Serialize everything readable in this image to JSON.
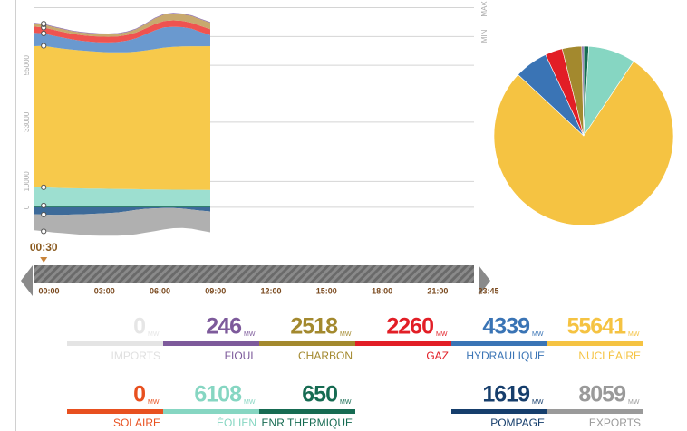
{
  "chart_data": {
    "type": "area",
    "x": [
      0,
      0.5,
      1,
      1.5,
      2,
      2.5,
      3,
      3.5,
      4,
      4.5,
      5,
      5.5,
      6,
      6.5,
      7,
      7.5,
      8,
      8.5,
      9,
      9.5
    ],
    "xlim": [
      0,
      23.75
    ],
    "xticks": [
      {
        "value": 0,
        "label": "00:00"
      },
      {
        "value": 3,
        "label": "03:00"
      },
      {
        "value": 6,
        "label": "06:00"
      },
      {
        "value": 9,
        "label": "09:00"
      },
      {
        "value": 12,
        "label": "12:00"
      },
      {
        "value": 15,
        "label": "15:00"
      },
      {
        "value": 18,
        "label": "18:00"
      },
      {
        "value": 21,
        "label": "21:00"
      },
      {
        "value": 23.75,
        "label": "23:45"
      }
    ],
    "ylim": [
      -11600,
      77500
    ],
    "yticks": [
      0,
      10000,
      33000,
      55000
    ],
    "grid": true,
    "max_line": {
      "value": 77500,
      "label": "MAX"
    },
    "min_line": {
      "value": 66300,
      "label": "MIN"
    },
    "cursor": {
      "value": 0.5,
      "label": "00:30"
    },
    "series": [
      {
        "name": "ENR THERMIQUE",
        "color": "#1c7a5a",
        "values": [
          700,
          700,
          690,
          690,
          680,
          680,
          680,
          670,
          670,
          670,
          660,
          660,
          660,
          660,
          660,
          650,
          650,
          650,
          650,
          650
        ]
      },
      {
        "name": "ÉOLIEN",
        "color": "#9ddfd0",
        "values": [
          7200,
          7050,
          6900,
          6800,
          6700,
          6650,
          6600,
          6550,
          6500,
          6450,
          6400,
          6350,
          6300,
          6250,
          6200,
          6180,
          6150,
          6130,
          6120,
          6108
        ]
      },
      {
        "name": "NUCLÉAIRE",
        "color": "#f7c94b",
        "values": [
          54500,
          54800,
          54400,
          54000,
          53700,
          53400,
          53200,
          53000,
          52900,
          52900,
          53000,
          53300,
          53800,
          54400,
          55000,
          55300,
          55500,
          55600,
          55600,
          55641
        ]
      },
      {
        "name": "HYDRAULIQUE",
        "color": "#6a99cf",
        "values": [
          5200,
          4800,
          4500,
          4300,
          4000,
          3800,
          3700,
          3700,
          3800,
          4000,
          4500,
          5200,
          6200,
          7200,
          7800,
          7800,
          7500,
          6800,
          5500,
          4339
        ]
      },
      {
        "name": "GAZ",
        "color": "#ef5350",
        "values": [
          2400,
          2300,
          2300,
          2200,
          2200,
          2200,
          2200,
          2200,
          2200,
          2200,
          2200,
          2200,
          2300,
          2400,
          2500,
          2500,
          2400,
          2300,
          2300,
          2260
        ]
      },
      {
        "name": "CHARBON",
        "color": "#c8a96e",
        "values": [
          1200,
          1200,
          1100,
          1100,
          1000,
          1000,
          1000,
          1000,
          1000,
          1000,
          1100,
          1300,
          1700,
          2200,
          2500,
          2600,
          2600,
          2600,
          2550,
          2518
        ]
      },
      {
        "name": "FIOUL",
        "color": "#8e6fae",
        "values": [
          250,
          250,
          250,
          250,
          250,
          250,
          250,
          250,
          250,
          250,
          250,
          250,
          250,
          250,
          250,
          250,
          250,
          250,
          250,
          246
        ]
      },
      {
        "name": "POMPAGE",
        "color": "#3c6a99",
        "values": [
          -2700,
          -2800,
          -2900,
          -2900,
          -2800,
          -2700,
          -2600,
          -2400,
          -2200,
          -2000,
          -1500,
          -1000,
          -600,
          -400,
          -300,
          -300,
          -500,
          -900,
          -1300,
          -1619
        ]
      },
      {
        "name": "EXPORTS",
        "color": "#b0b0b0",
        "values": [
          -6200,
          -6500,
          -6800,
          -7100,
          -7500,
          -7900,
          -8300,
          -8600,
          -8800,
          -9000,
          -9300,
          -9400,
          -9200,
          -8800,
          -8300,
          -7800,
          -7500,
          -7400,
          -7700,
          -8059
        ]
      }
    ]
  },
  "tiles_unit": "MW",
  "tiles": [
    {
      "name": "IMPORTS",
      "value": 0,
      "color": "#e4e4e4"
    },
    {
      "name": "FIOUL",
      "value": 246,
      "color": "#7d5a9b"
    },
    {
      "name": "CHARBON",
      "value": 2518,
      "color": "#a3892e"
    },
    {
      "name": "GAZ",
      "value": 2260,
      "color": "#e21e26"
    },
    {
      "name": "HYDRAULIQUE",
      "value": 4339,
      "color": "#3a74b5"
    },
    {
      "name": "NUCLÉAIRE",
      "value": 55641,
      "color": "#f5c342"
    },
    {
      "name": "SOLAIRE",
      "value": 0,
      "color": "#e8501f"
    },
    {
      "name": "ÉOLIEN",
      "value": 6108,
      "color": "#86d6c2"
    },
    {
      "name": "ENR THERMIQUE",
      "value": 650,
      "color": "#166b52"
    },
    {
      "name": "POMPAGE",
      "value": 1619,
      "color": "#163e6c"
    },
    {
      "name": "EXPORTS",
      "value": 8059,
      "color": "#9a9a9a"
    }
  ]
}
